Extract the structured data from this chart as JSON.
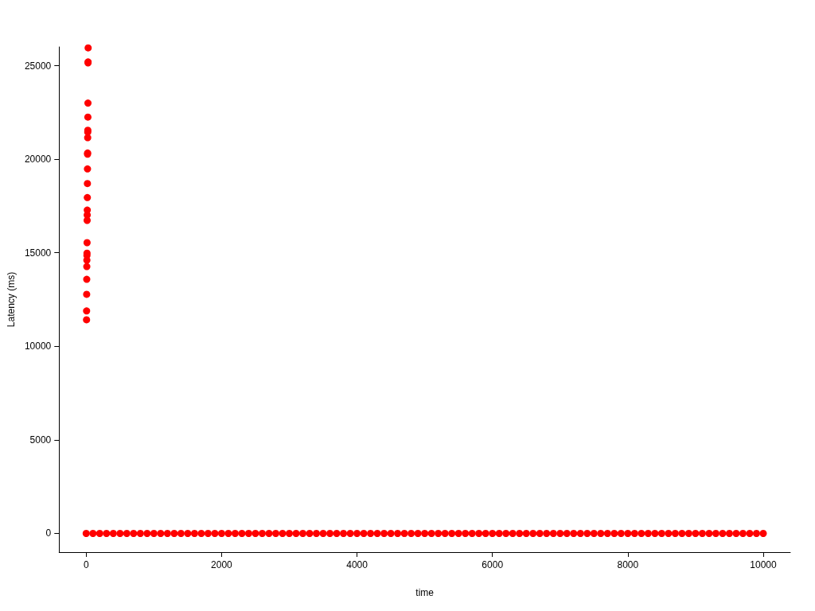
{
  "chart_data": {
    "type": "scatter",
    "xlabel": "time",
    "ylabel": "Latency (ms)",
    "color": "#ff0000",
    "marker": "circle",
    "grid": false,
    "xlim": [
      -400,
      10400
    ],
    "xticks": [
      0,
      2000,
      4000,
      6000,
      8000,
      10000
    ],
    "ylim": [
      -1000,
      26000
    ],
    "yticks": [
      0,
      5000,
      10000,
      15000,
      20000,
      25000
    ],
    "x": [
      5,
      6,
      7,
      8,
      9,
      10,
      11,
      12,
      13,
      14,
      15,
      16,
      17,
      18,
      19,
      20,
      21,
      22,
      23,
      24,
      25,
      26,
      27,
      28,
      29,
      0,
      100,
      200,
      300,
      400,
      500,
      600,
      700,
      800,
      900,
      1000,
      1100,
      1200,
      1300,
      1400,
      1500,
      1600,
      1700,
      1800,
      1900,
      2000,
      2100,
      2200,
      2300,
      2400,
      2500,
      2600,
      2700,
      2800,
      2900,
      3000,
      3100,
      3200,
      3300,
      3400,
      3500,
      3600,
      3700,
      3800,
      3900,
      4000,
      4100,
      4200,
      4300,
      4400,
      4500,
      4600,
      4700,
      4800,
      4900,
      5000,
      5100,
      5200,
      5300,
      5400,
      5500,
      5600,
      5700,
      5800,
      5900,
      6000,
      6100,
      6200,
      6300,
      6400,
      6500,
      6600,
      6700,
      6800,
      6900,
      7000,
      7100,
      7200,
      7300,
      7400,
      7500,
      7600,
      7700,
      7800,
      7900,
      8000,
      8100,
      8200,
      8300,
      8400,
      8500,
      8600,
      8700,
      8800,
      8900,
      9000,
      9100,
      9200,
      9300,
      9400,
      9500,
      9600,
      9700,
      9800,
      9900,
      10000
    ],
    "values": [
      11420,
      11890,
      12780,
      13580,
      14260,
      14600,
      14860,
      14980,
      15540,
      16730,
      17020,
      17280,
      17950,
      18700,
      19480,
      20270,
      20330,
      21150,
      21450,
      21550,
      22250,
      23000,
      25150,
      25200,
      25950,
      0,
      0,
      0,
      0,
      0,
      0,
      0,
      0,
      0,
      0,
      0,
      0,
      0,
      0,
      0,
      0,
      0,
      0,
      0,
      0,
      0,
      0,
      0,
      0,
      0,
      0,
      0,
      0,
      0,
      0,
      0,
      0,
      0,
      0,
      0,
      0,
      0,
      0,
      0,
      0,
      0,
      0,
      0,
      0,
      0,
      0,
      0,
      0,
      0,
      0,
      0,
      0,
      0,
      0,
      0,
      0,
      0,
      0,
      0,
      0,
      0,
      0,
      0,
      0,
      0,
      0,
      0,
      0,
      0,
      0,
      0,
      0,
      0,
      0,
      0,
      0,
      0,
      0,
      0,
      0,
      0,
      0,
      0,
      0,
      0,
      0,
      0,
      0,
      0,
      0,
      0,
      0,
      0,
      0,
      0,
      0,
      0,
      0,
      0,
      0,
      0
    ]
  }
}
